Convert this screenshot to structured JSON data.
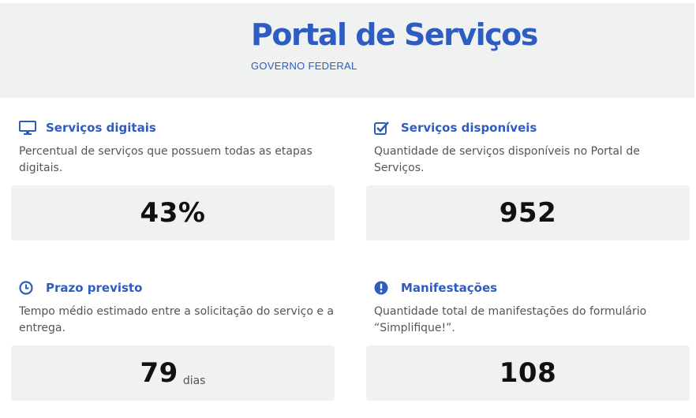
{
  "header": {
    "title": "Portal de Serviços",
    "subtitle": "GOVERNO FEDERAL"
  },
  "cards": [
    {
      "icon": "monitor-icon",
      "title": "Serviços digitais",
      "description": "Percentual de serviços que possuem todas as etapas digitais.",
      "value": "43%",
      "unit": ""
    },
    {
      "icon": "checkbox-icon",
      "title": "Serviços disponíveis",
      "description": "Quantidade de serviços disponíveis no Portal de Serviços.",
      "value": "952",
      "unit": ""
    },
    {
      "icon": "clock-icon",
      "title": "Prazo previsto",
      "description": "Tempo médio estimado entre a solicitação do serviço e a entrega.",
      "value": "79",
      "unit": "dias"
    },
    {
      "icon": "exclamation-icon",
      "title": "Manifestações",
      "description": "Quantidade total de manifestações do formulário “Simplifique!”.",
      "value": "108",
      "unit": ""
    }
  ],
  "colors": {
    "accent": "#2e5cc0",
    "panel": "#f0f1f1",
    "value_text": "#111111"
  }
}
